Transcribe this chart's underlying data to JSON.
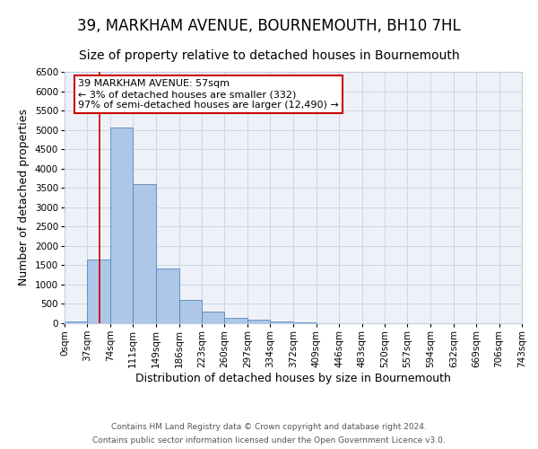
{
  "title": "39, MARKHAM AVENUE, BOURNEMOUTH, BH10 7HL",
  "subtitle": "Size of property relative to detached houses in Bournemouth",
  "xlabel": "Distribution of detached houses by size in Bournemouth",
  "ylabel": "Number of detached properties",
  "bin_labels": [
    "0sqm",
    "37sqm",
    "74sqm",
    "111sqm",
    "149sqm",
    "186sqm",
    "223sqm",
    "260sqm",
    "297sqm",
    "334sqm",
    "372sqm",
    "409sqm",
    "446sqm",
    "483sqm",
    "520sqm",
    "557sqm",
    "594sqm",
    "632sqm",
    "669sqm",
    "706sqm",
    "743sqm"
  ],
  "bin_edges": [
    0,
    37,
    74,
    111,
    149,
    186,
    223,
    260,
    297,
    334,
    372,
    409,
    446,
    483,
    520,
    557,
    594,
    632,
    669,
    706,
    743
  ],
  "bar_heights": [
    50,
    1650,
    5050,
    3600,
    1420,
    610,
    300,
    150,
    100,
    55,
    30,
    0,
    0,
    0,
    0,
    0,
    0,
    0,
    0,
    0
  ],
  "bar_color": "#aec6e8",
  "bar_edge_color": "#5588bb",
  "property_line_x": 57,
  "ylim": [
    0,
    6500
  ],
  "yticks": [
    0,
    500,
    1000,
    1500,
    2000,
    2500,
    3000,
    3500,
    4000,
    4500,
    5000,
    5500,
    6000,
    6500
  ],
  "annotation_title": "39 MARKHAM AVENUE: 57sqm",
  "annotation_line1": "← 3% of detached houses are smaller (332)",
  "annotation_line2": "97% of semi-detached houses are larger (12,490) →",
  "annotation_box_color": "#ffffff",
  "annotation_box_edge": "#cc0000",
  "footer_line1": "Contains HM Land Registry data © Crown copyright and database right 2024.",
  "footer_line2": "Contains public sector information licensed under the Open Government Licence v3.0.",
  "title_fontsize": 12,
  "subtitle_fontsize": 10,
  "axis_label_fontsize": 9,
  "tick_fontsize": 7.5
}
